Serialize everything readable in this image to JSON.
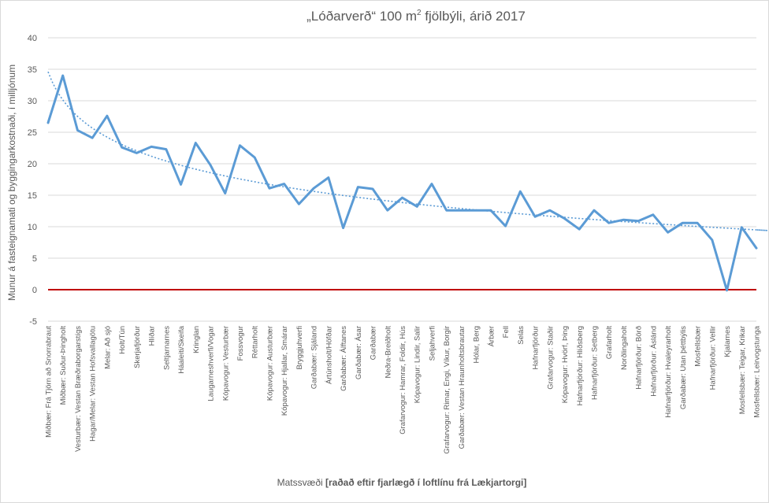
{
  "chart_data": {
    "type": "line",
    "title_main": "„Lóðarverð“ 100 m",
    "title_sup": "2",
    "title_rest": " fjölbýli, árið 2017",
    "xlabel_main": "Matssvæði ",
    "xlabel_bold": "[raðað eftir fjarlægð í loftlínu frá Lækjartorgi]",
    "ylabel": "Munur á fasteignamati og byggingarkostnaði, í milljónum",
    "ylim": [
      -5,
      40
    ],
    "yticks": [
      -5,
      0,
      5,
      10,
      15,
      20,
      25,
      30,
      35,
      40
    ],
    "grid": true,
    "colors": {
      "series": "#5b9bd5",
      "trend": "#5b9bd5",
      "zero_line": "#c00000",
      "grid": "#d9d9d9"
    },
    "categories": [
      "Miðbær: Frá Tjörn að Snorrabraut",
      "Miðbær: Suður-Þingholt",
      "Vesturbær: Vestan Bræðraborgarstígs",
      "Hagar/Melar: Vestan Hofsvallagötu",
      "Melar: Að sjó",
      "Holt/Tún",
      "Skerjafjörður",
      "Hlíðar",
      "Seltjarnarnes",
      "Háaleiti/Skeifa",
      "Kringlan",
      "Laugarneshverfi/Vogar",
      "Kópavogur: Vesturbær",
      "Fossvogur",
      "Réttarholt",
      "Kópavogur: Austurbær",
      "Kópavogur: Hjallar, Smárar",
      "Bryggjuhverfi",
      "Garðabær: Sjáland",
      "Ártúnsholt/Höfðar",
      "Garðabær: Álftanes",
      "Garðabær: Ásar",
      "Garðabær",
      "Neðra-Breiðholt",
      "Grafarvogur: Hamrar, Foldir, Hús",
      "Kópavogur: Lindir, Salir",
      "Seljahverfi",
      "Grafarvogur: Rimar, Engi, Víkur, Borgir",
      "Garðabær: Vestan Hraunholtsbrautar",
      "Hólar, Berg",
      "Árbær",
      "Fell",
      "Selás",
      "Hafnarfjörður",
      "Grafarvogur: Staðir",
      "Kópavogur: Hvörf, Þing",
      "Hafnarfjörður: Hlíðsberg",
      "Hafnarfjörður: Setberg",
      "Grafarholt",
      "Norðlingaholt",
      "Hafnarfjörður: Börð",
      "Hafnarfjörður: Áslánd",
      "Hafnarfjörður: Hvaleyrarholt",
      "Garðabær: Utan þéttbýlis",
      "Mosfellsbær",
      "Hafnarfjörður: Vellir",
      "Kjalarnes",
      "Mosfellsbær: Teigar, Krikar",
      "Mosfellsbær: Leirvogstunga"
    ],
    "series": [
      {
        "values": [
          26.5,
          34,
          25.3,
          24.1,
          27.6,
          22.6,
          21.7,
          22.7,
          22.3,
          16.7,
          23.3,
          19.8,
          15.3,
          22.9,
          21,
          16.1,
          16.8,
          13.6,
          16.1,
          17.8,
          9.8,
          16.3,
          16,
          12.6,
          14.6,
          13.2,
          16.8,
          12.6,
          12.6,
          12.6,
          12.6,
          10.1,
          15.6,
          11.6,
          12.6,
          11.3,
          9.6,
          12.6,
          10.6,
          11.1,
          10.9,
          11.9,
          9.1,
          10.6,
          10.6,
          7.9,
          -0.1,
          9.9,
          6.6
        ]
      }
    ],
    "trendline": {
      "type": "log",
      "start_value": 34.6,
      "end_value": 9.5
    }
  }
}
